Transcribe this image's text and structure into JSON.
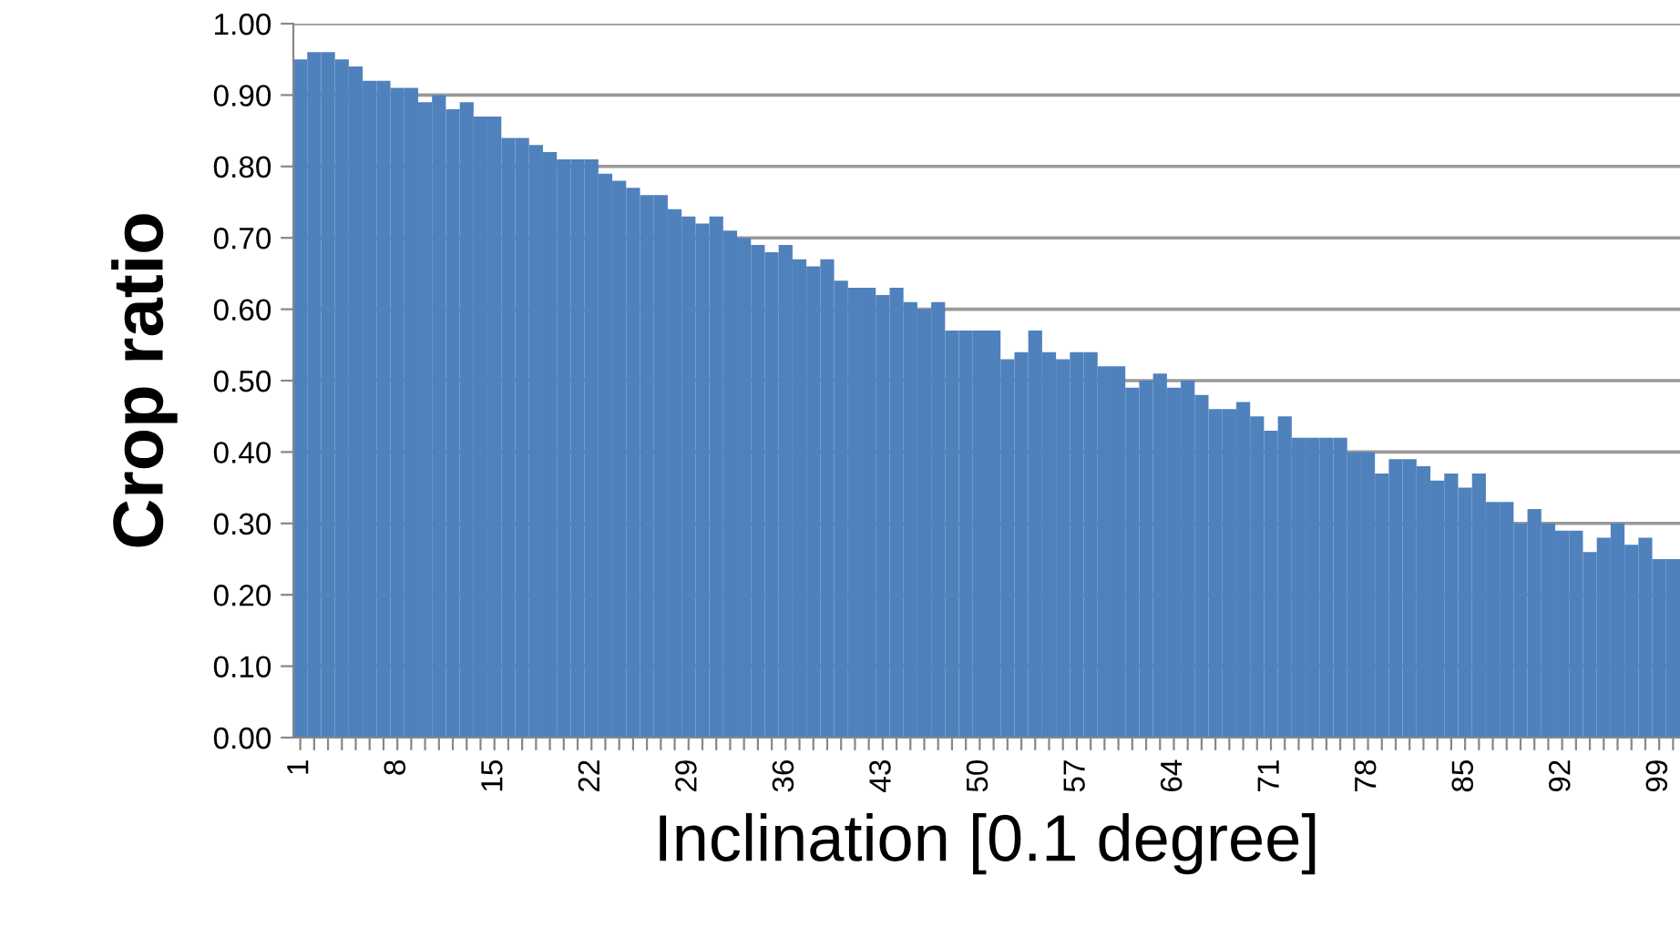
{
  "chart_data": {
    "type": "bar",
    "xlabel": "Inclination [0.1 degree]",
    "ylabel": "Crop ratio",
    "categories": [
      "1",
      null,
      null,
      null,
      null,
      null,
      null,
      "8",
      null,
      null,
      null,
      null,
      null,
      null,
      "15",
      null,
      null,
      null,
      null,
      null,
      null,
      "22",
      null,
      null,
      null,
      null,
      null,
      null,
      "29",
      null,
      null,
      null,
      null,
      null,
      null,
      "36",
      null,
      null,
      null,
      null,
      null,
      null,
      "43",
      null,
      null,
      null,
      null,
      null,
      null,
      "50",
      null,
      null,
      null,
      null,
      null,
      null,
      "57",
      null,
      null,
      null,
      null,
      null,
      null,
      "64",
      null,
      null,
      null,
      null,
      null,
      null,
      "71",
      null,
      null,
      null,
      null,
      null,
      null,
      "78",
      null,
      null,
      null,
      null,
      null,
      null,
      "85",
      null,
      null,
      null,
      null,
      null,
      null,
      "92",
      null,
      null,
      null,
      null,
      null,
      null,
      "99",
      null
    ],
    "values": [
      0.95,
      0.96,
      0.96,
      0.95,
      0.94,
      0.92,
      0.92,
      0.91,
      0.91,
      0.89,
      0.9,
      0.88,
      0.89,
      0.87,
      0.87,
      0.84,
      0.84,
      0.83,
      0.82,
      0.81,
      0.81,
      0.81,
      0.79,
      0.78,
      0.77,
      0.76,
      0.76,
      0.74,
      0.73,
      0.72,
      0.73,
      0.71,
      0.7,
      0.69,
      0.68,
      0.69,
      0.67,
      0.66,
      0.67,
      0.64,
      0.63,
      0.63,
      0.62,
      0.63,
      0.61,
      0.6,
      0.61,
      0.57,
      0.57,
      0.57,
      0.57,
      0.53,
      0.54,
      0.57,
      0.54,
      0.53,
      0.54,
      0.54,
      0.52,
      0.52,
      0.49,
      0.5,
      0.51,
      0.49,
      0.5,
      0.48,
      0.46,
      0.46,
      0.47,
      0.45,
      0.43,
      0.45,
      0.42,
      0.42,
      0.42,
      0.42,
      0.4,
      0.4,
      0.37,
      0.39,
      0.39,
      0.38,
      0.36,
      0.37,
      0.35,
      0.37,
      0.33,
      0.33,
      0.3,
      0.32,
      0.3,
      0.29,
      0.29,
      0.26,
      0.28,
      0.3,
      0.27,
      0.28,
      0.25,
      0.25
    ],
    "color": "#4f81bd",
    "ylim": [
      0,
      1
    ],
    "yticks": [
      {
        "value": 0,
        "label": "0.00"
      },
      {
        "value": 0.1,
        "label": "0.10"
      },
      {
        "value": 0.2,
        "label": "0.20"
      },
      {
        "value": 0.3,
        "label": "0.30"
      },
      {
        "value": 0.4,
        "label": "0.40"
      },
      {
        "value": 0.5,
        "label": "0.50"
      },
      {
        "value": 0.6,
        "label": "0.60"
      },
      {
        "value": 0.7,
        "label": "0.70"
      },
      {
        "value": 0.8,
        "label": "0.80"
      },
      {
        "value": 0.9,
        "label": "0.90"
      },
      {
        "value": 1,
        "label": "1.00"
      }
    ],
    "grid": "y"
  }
}
